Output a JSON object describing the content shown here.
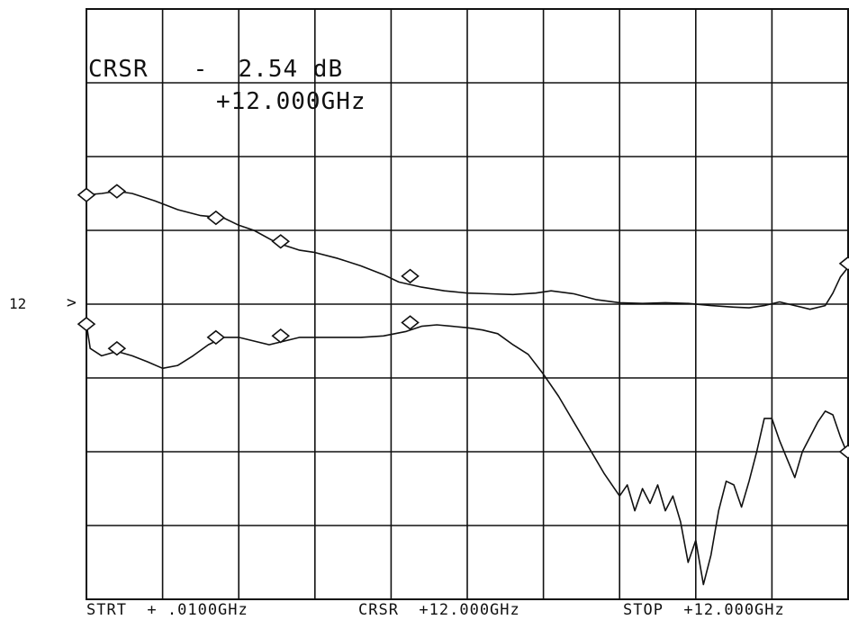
{
  "cursor": {
    "readout": "CRSR   -  2.54 dB",
    "frequency": "+12.000GHz"
  },
  "reference": {
    "level": "12",
    "marker": ">"
  },
  "footer": {
    "start": "STRT  + .0100GHz",
    "cursor": "CRSR  +12.000GHz",
    "stop": "STOP  +12.000GHz"
  },
  "colors": {
    "trace": "#111111",
    "grid": "#111111",
    "background": "#ffffff"
  },
  "chart_data": {
    "type": "line",
    "title": "",
    "xlabel": "",
    "ylabel": "",
    "grid": true,
    "x_divisions": 10,
    "y_divisions": 8,
    "xlim": [
      0,
      10
    ],
    "ylim": [
      0,
      8
    ],
    "series": [
      {
        "values": [
          [
            0.0,
            5.48
          ],
          [
            0.2,
            5.5
          ],
          [
            0.4,
            5.53
          ],
          [
            0.6,
            5.5
          ],
          [
            0.9,
            5.4
          ],
          [
            1.2,
            5.28
          ],
          [
            1.5,
            5.2
          ],
          [
            1.8,
            5.17
          ],
          [
            2.0,
            5.07
          ],
          [
            2.2,
            5.0
          ],
          [
            2.5,
            4.83
          ],
          [
            2.8,
            4.73
          ],
          [
            3.0,
            4.7
          ],
          [
            3.3,
            4.62
          ],
          [
            3.6,
            4.52
          ],
          [
            3.9,
            4.4
          ],
          [
            4.1,
            4.3
          ],
          [
            4.4,
            4.23
          ],
          [
            4.7,
            4.18
          ],
          [
            5.0,
            4.15
          ],
          [
            5.3,
            4.14
          ],
          [
            5.6,
            4.13
          ],
          [
            5.9,
            4.15
          ],
          [
            6.1,
            4.18
          ],
          [
            6.4,
            4.14
          ],
          [
            6.7,
            4.06
          ],
          [
            7.0,
            4.02
          ],
          [
            7.3,
            4.01
          ],
          [
            7.6,
            4.02
          ],
          [
            7.9,
            4.01
          ],
          [
            8.2,
            3.98
          ],
          [
            8.5,
            3.96
          ],
          [
            8.7,
            3.95
          ],
          [
            8.9,
            3.98
          ],
          [
            9.1,
            4.03
          ],
          [
            9.3,
            3.98
          ],
          [
            9.5,
            3.93
          ],
          [
            9.7,
            3.98
          ],
          [
            9.8,
            4.15
          ],
          [
            9.9,
            4.37
          ],
          [
            10.0,
            4.5
          ]
        ],
        "markers": [
          [
            0.0,
            5.48
          ],
          [
            0.4,
            5.53
          ],
          [
            1.7,
            5.17
          ],
          [
            2.55,
            4.85
          ],
          [
            4.25,
            4.38
          ],
          [
            10.0,
            4.55
          ]
        ]
      },
      {
        "values": [
          [
            0.0,
            3.73
          ],
          [
            0.05,
            3.4
          ],
          [
            0.2,
            3.3
          ],
          [
            0.4,
            3.36
          ],
          [
            0.6,
            3.3
          ],
          [
            0.8,
            3.22
          ],
          [
            1.0,
            3.13
          ],
          [
            1.2,
            3.17
          ],
          [
            1.4,
            3.3
          ],
          [
            1.6,
            3.45
          ],
          [
            1.8,
            3.55
          ],
          [
            2.0,
            3.55
          ],
          [
            2.2,
            3.5
          ],
          [
            2.4,
            3.45
          ],
          [
            2.6,
            3.5
          ],
          [
            2.8,
            3.55
          ],
          [
            3.0,
            3.55
          ],
          [
            3.3,
            3.55
          ],
          [
            3.6,
            3.55
          ],
          [
            3.9,
            3.57
          ],
          [
            4.2,
            3.63
          ],
          [
            4.4,
            3.7
          ],
          [
            4.6,
            3.72
          ],
          [
            4.8,
            3.7
          ],
          [
            5.0,
            3.68
          ],
          [
            5.2,
            3.65
          ],
          [
            5.4,
            3.6
          ],
          [
            5.6,
            3.45
          ],
          [
            5.8,
            3.32
          ],
          [
            6.0,
            3.05
          ],
          [
            6.2,
            2.75
          ],
          [
            6.4,
            2.4
          ],
          [
            6.6,
            2.05
          ],
          [
            6.8,
            1.7
          ],
          [
            7.0,
            1.4
          ],
          [
            7.1,
            1.55
          ],
          [
            7.2,
            1.2
          ],
          [
            7.3,
            1.5
          ],
          [
            7.4,
            1.3
          ],
          [
            7.5,
            1.55
          ],
          [
            7.6,
            1.2
          ],
          [
            7.7,
            1.4
          ],
          [
            7.8,
            1.05
          ],
          [
            7.9,
            0.5
          ],
          [
            8.0,
            0.8
          ],
          [
            8.1,
            0.2
          ],
          [
            8.2,
            0.6
          ],
          [
            8.3,
            1.2
          ],
          [
            8.4,
            1.6
          ],
          [
            8.5,
            1.55
          ],
          [
            8.6,
            1.25
          ],
          [
            8.7,
            1.6
          ],
          [
            8.8,
            2.0
          ],
          [
            8.9,
            2.45
          ],
          [
            9.0,
            2.45
          ],
          [
            9.1,
            2.15
          ],
          [
            9.2,
            1.9
          ],
          [
            9.3,
            1.65
          ],
          [
            9.4,
            2.0
          ],
          [
            9.5,
            2.2
          ],
          [
            9.6,
            2.4
          ],
          [
            9.7,
            2.55
          ],
          [
            9.8,
            2.5
          ],
          [
            9.9,
            2.2
          ],
          [
            10.0,
            1.95
          ]
        ],
        "markers": [
          [
            0.0,
            3.73
          ],
          [
            0.4,
            3.4
          ],
          [
            1.7,
            3.55
          ],
          [
            2.55,
            3.57
          ],
          [
            4.25,
            3.75
          ],
          [
            10.0,
            2.0
          ]
        ]
      }
    ]
  }
}
